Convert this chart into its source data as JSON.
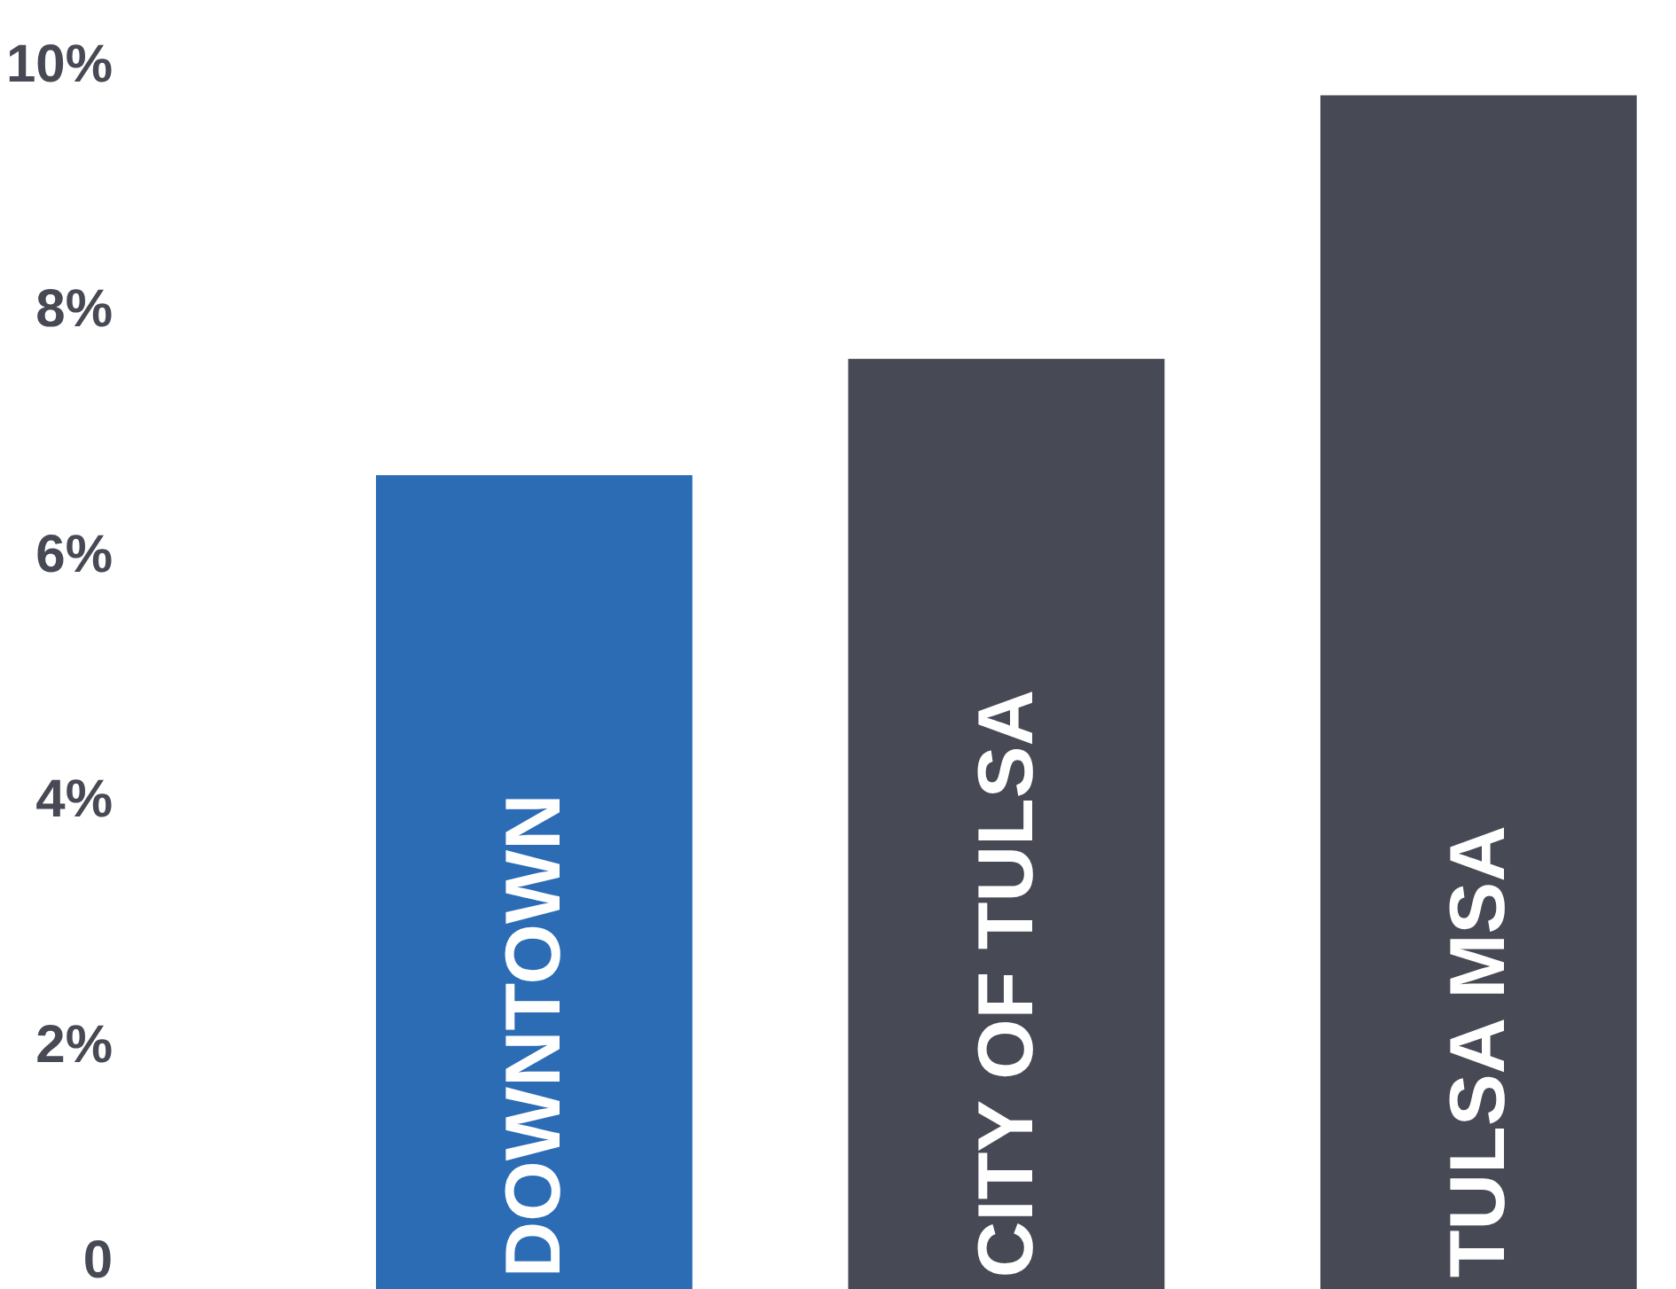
{
  "chart_data": {
    "type": "bar",
    "categories": [
      "DOWNTOWN",
      "CITY OF TULSA",
      "TULSA MSA"
    ],
    "values": [
      6.65,
      7.6,
      9.75
    ],
    "colors": [
      "#2b6cb5",
      "#474a54",
      "#474a54"
    ],
    "ylim": [
      0,
      10
    ],
    "yticks": [
      0,
      {
        "value": 2,
        "label": "2%"
      },
      {
        "value": 4,
        "label": "4%"
      },
      {
        "value": 6,
        "label": "6%"
      },
      {
        "value": 8,
        "label": "8%"
      },
      {
        "value": 10,
        "label": "10%"
      }
    ],
    "grid": false
  }
}
